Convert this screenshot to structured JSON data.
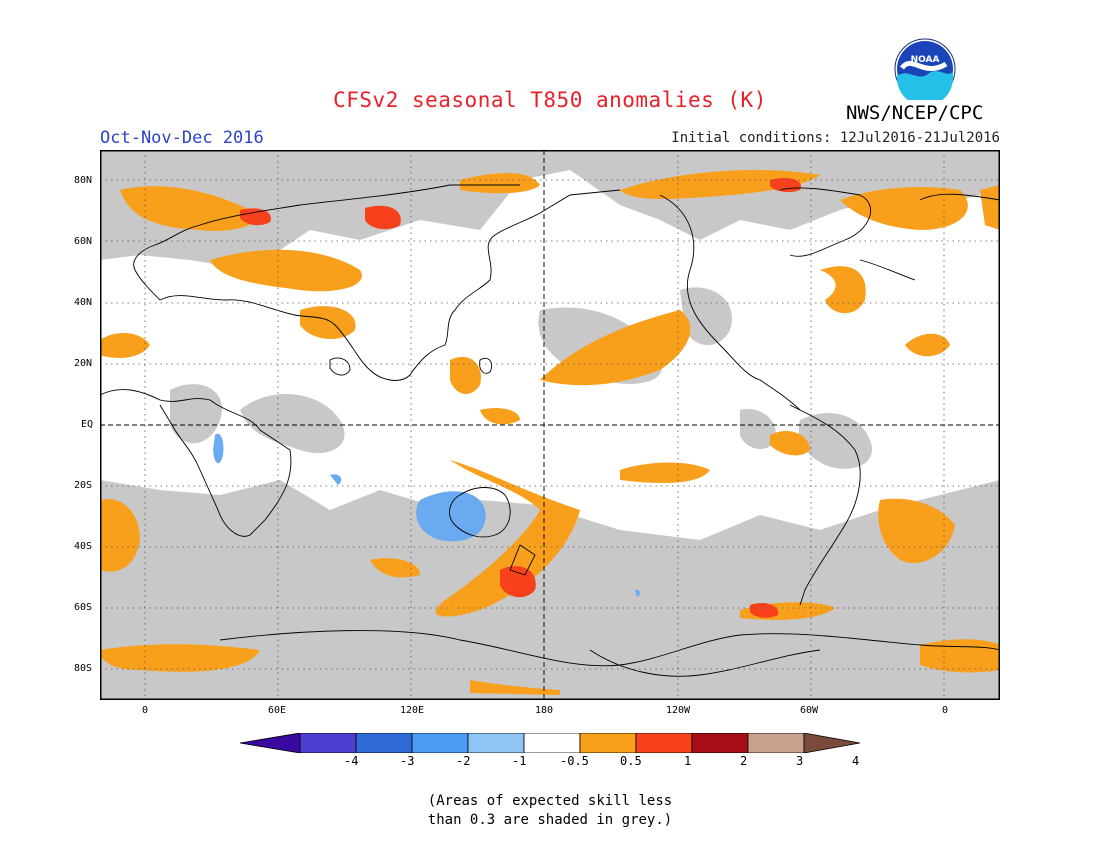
{
  "header": {
    "title": "CFSv2 seasonal T850 anomalies (K)",
    "season": "Oct-Nov-Dec 2016",
    "initial_conditions": "Initial conditions: 12Jul2016-21Jul2016",
    "agency": "NWS/NCEP/CPC",
    "logo_text": "NOAA"
  },
  "map": {
    "lat_labels": [
      "80N",
      "60N",
      "40N",
      "20N",
      "EQ",
      "20S",
      "40S",
      "60S",
      "80S"
    ],
    "lon_labels": [
      "0",
      "60E",
      "120E",
      "180",
      "120W",
      "60W",
      "0"
    ],
    "projection": "cylindrical equidistant, 20E to 20E",
    "shading_note_grey": "Areas of expected skill less than 0.3"
  },
  "legend": {
    "ticks": [
      "-4",
      "-3",
      "-2",
      "-1",
      "-0.5",
      "0.5",
      "1",
      "2",
      "3",
      "4"
    ],
    "colors": [
      "#3a0aa0",
      "#4d3fcf",
      "#2f6bd6",
      "#4a9cf2",
      "#8ec5f5",
      "#ffffff",
      "#f8a01c",
      "#f7411c",
      "#a50f15",
      "#c8a08e",
      "#7a4a3a"
    ]
  },
  "note": {
    "line1": "(Areas of expected skill less",
    "line2": "than 0.3 are shaded in grey.)"
  },
  "colors": {
    "title": "#e8202a",
    "season": "#2a43c8",
    "grey_mask": "#c8c8c8",
    "warm_1": "#f8a01c",
    "warm_2": "#f7411c",
    "cool_1": "#6aaaf0"
  }
}
